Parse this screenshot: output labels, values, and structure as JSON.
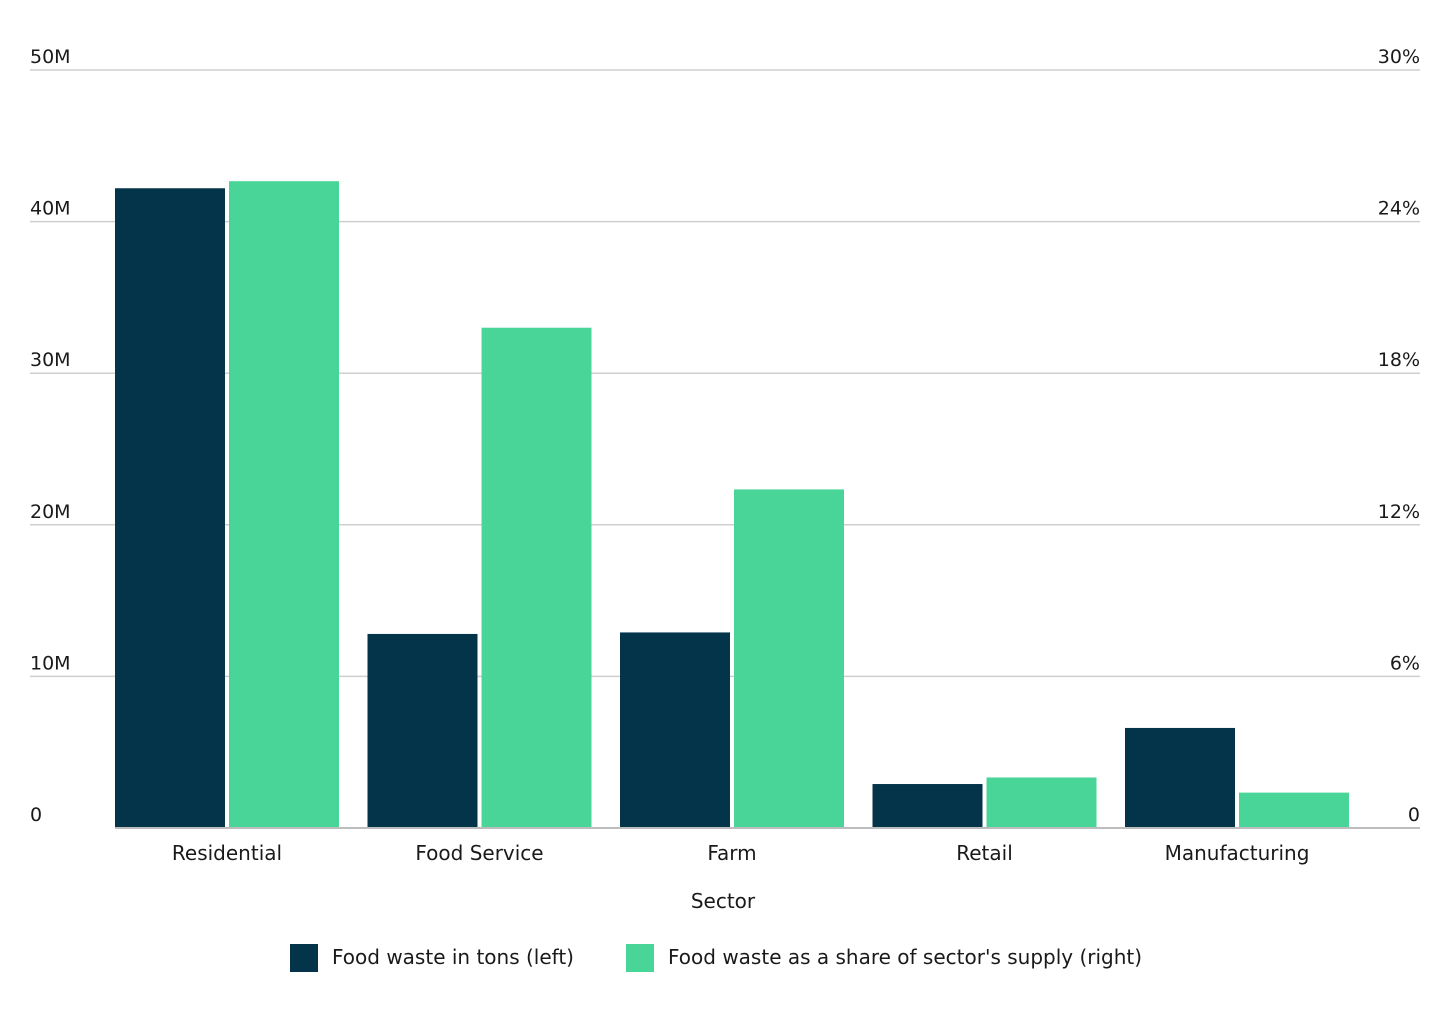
{
  "chart_data": {
    "type": "bar",
    "xlabel": "Sector",
    "categories": [
      "Residential",
      "Food Service",
      "Farm",
      "Retail",
      "Manufacturing"
    ],
    "y_left": {
      "ylim": [
        0,
        50000000
      ],
      "tick_values": [
        0,
        10000000,
        20000000,
        30000000,
        40000000,
        50000000
      ],
      "tick_labels": [
        "0",
        "10M",
        "20M",
        "30M",
        "40M",
        "50M"
      ]
    },
    "y_right": {
      "ylim": [
        0,
        30
      ],
      "tick_values": [
        0,
        6,
        12,
        18,
        24,
        30
      ],
      "tick_labels": [
        "0",
        "6%",
        "12%",
        "18%",
        "24%",
        "30%"
      ]
    },
    "series": [
      {
        "name": "Food waste in tons (left)",
        "axis": "left",
        "color": "#03344a",
        "values": [
          42200000,
          12800000,
          12900000,
          2900000,
          6600000
        ]
      },
      {
        "name": "Food waste as a share of sector's supply (right)",
        "axis": "right",
        "color": "#48d597",
        "values": [
          25.6,
          19.8,
          13.4,
          2.0,
          1.4
        ]
      }
    ],
    "grid": true,
    "legend_position": "bottom-center"
  }
}
